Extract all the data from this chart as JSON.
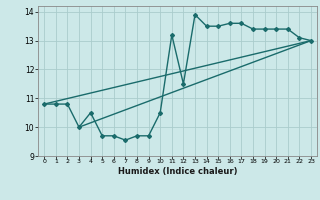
{
  "title": "",
  "xlabel": "Humidex (Indice chaleur)",
  "ylabel": "",
  "bg_color": "#cce8e8",
  "grid_color": "#aacccc",
  "line_color": "#1a6b6b",
  "marker": "D",
  "marker_size": 2.0,
  "line_width": 1.0,
  "xlim": [
    -0.5,
    23.5
  ],
  "ylim": [
    9,
    14.2
  ],
  "xticks": [
    0,
    1,
    2,
    3,
    4,
    5,
    6,
    7,
    8,
    9,
    10,
    11,
    12,
    13,
    14,
    15,
    16,
    17,
    18,
    19,
    20,
    21,
    22,
    23
  ],
  "yticks": [
    9,
    10,
    11,
    12,
    13,
    14
  ],
  "series1_x": [
    0,
    1,
    2,
    3,
    4,
    5,
    6,
    7,
    8,
    9,
    10,
    11,
    12,
    13,
    14,
    15,
    16,
    17,
    18,
    19,
    20,
    21,
    22,
    23
  ],
  "series1_y": [
    10.8,
    10.8,
    10.8,
    10.0,
    10.5,
    9.7,
    9.7,
    9.55,
    9.7,
    9.7,
    10.5,
    13.2,
    11.5,
    13.9,
    13.5,
    13.5,
    13.6,
    13.6,
    13.4,
    13.4,
    13.4,
    13.4,
    13.1,
    13.0
  ],
  "series2_x": [
    0,
    23
  ],
  "series2_y": [
    10.8,
    13.0
  ],
  "series3_x": [
    3,
    23
  ],
  "series3_y": [
    10.0,
    13.0
  ]
}
